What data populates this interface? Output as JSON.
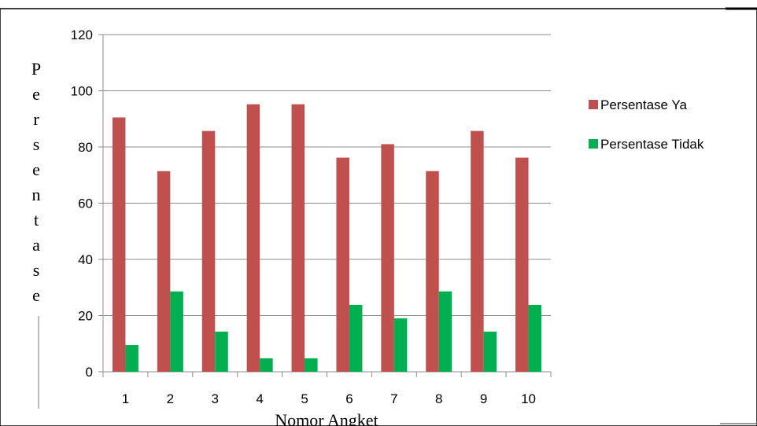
{
  "chart_data": {
    "type": "bar",
    "categories": [
      "1",
      "2",
      "3",
      "4",
      "5",
      "6",
      "7",
      "8",
      "9",
      "10"
    ],
    "series": [
      {
        "name": "Persentase Ya",
        "color": "#c0504d",
        "values": [
          90.5,
          71.4,
          85.7,
          95.2,
          95.2,
          76.2,
          81.0,
          71.4,
          85.7,
          76.2
        ]
      },
      {
        "name": "Persentase Tidak",
        "color": "#00b050",
        "values": [
          9.5,
          28.6,
          14.3,
          4.8,
          4.8,
          23.8,
          19.0,
          28.6,
          14.3,
          23.8
        ]
      }
    ],
    "xlabel": "Nomor Angket",
    "ylabel": "Persentase",
    "ylabel_letters": [
      "P",
      "e",
      "r",
      "s",
      "e",
      "n",
      "t",
      "a",
      "s",
      "e"
    ],
    "yticks": [
      "0",
      "20",
      "40",
      "60",
      "80",
      "100",
      "120"
    ],
    "ylim": [
      0,
      120
    ],
    "grid": true,
    "legend_position": "right"
  }
}
